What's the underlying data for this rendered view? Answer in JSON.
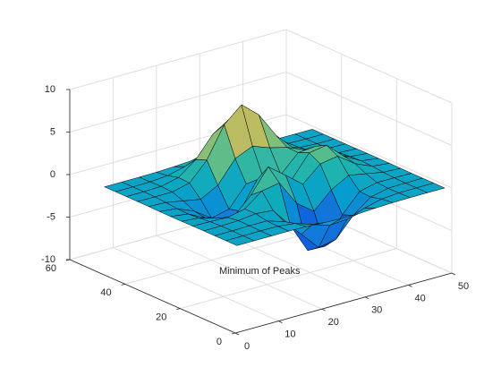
{
  "chart_data": {
    "type": "surface",
    "x": [
      1,
      5,
      9,
      13,
      17,
      21,
      25,
      29,
      33,
      37,
      41,
      45,
      49
    ],
    "y": [
      1,
      5,
      9,
      13,
      17,
      21,
      25,
      29,
      33,
      37,
      41,
      45,
      49
    ],
    "z": [
      [
        0,
        0,
        0,
        0.01,
        -0.03,
        -0.14,
        -0.24,
        -0.22,
        -0.11,
        -0.03,
        -0.01,
        0,
        0
      ],
      [
        0,
        0,
        0.02,
        0,
        -0.23,
        -0.91,
        -1.57,
        -1.41,
        -0.69,
        -0.18,
        -0.03,
        0,
        0
      ],
      [
        0,
        0.01,
        0.05,
        0.05,
        -0.59,
        -2.64,
        -4.76,
        -4.35,
        -2.1,
        -0.53,
        -0.06,
        -0.01,
        0
      ],
      [
        0,
        0.01,
        0.08,
        0.33,
        0.15,
        -2.19,
        -5.68,
        -5.76,
        -2.63,
        -0.44,
        0.04,
        0.03,
        0
      ],
      [
        -0.01,
        -0.06,
        -0.13,
        0.3,
        1.86,
        2.23,
        -0.72,
        -2.22,
        -0.27,
        0.88,
        0.5,
        0.11,
        0.01
      ],
      [
        -0.03,
        -0.2,
        -0.8,
        -1.21,
        0.8,
        3.55,
        2,
        0.39,
        2.2,
        2.56,
        1.12,
        0.24,
        0.03
      ],
      [
        -0.04,
        -0.3,
        -1.33,
        -2.77,
        -1.65,
        1.48,
        0.98,
        0.38,
        2.94,
        3.27,
        1.41,
        0.3,
        0.03
      ],
      [
        -0.03,
        -0.25,
        -1.12,
        -2.49,
        -2,
        0.39,
        0.46,
        0.37,
        2.38,
        2.56,
        1.1,
        0.23,
        0.03
      ],
      [
        -0.01,
        -0.11,
        -0.48,
        -0.86,
        0.23,
        2.8,
        3.69,
        2.94,
        2.43,
        1.58,
        0.58,
        0.11,
        0.01
      ],
      [
        0,
        -0.02,
        -0.01,
        0.48,
        2.61,
        6.2,
        7.99,
        6.25,
        3.26,
        1.19,
        0.29,
        0.05,
        0
      ],
      [
        0,
        0.01,
        0.08,
        0.55,
        2.1,
        4.56,
        5.86,
        4.57,
        2.21,
        0.68,
        0.13,
        0.02,
        0
      ],
      [
        0,
        0,
        0.03,
        0.19,
        0.69,
        1.47,
        1.89,
        1.47,
        0.7,
        0.21,
        0.04,
        0,
        0
      ],
      [
        0,
        0,
        0,
        0.03,
        0.11,
        0.23,
        0.3,
        0.23,
        0.11,
        0.03,
        0.01,
        0,
        0
      ]
    ],
    "xlim": [
      0,
      50
    ],
    "ylim": [
      0,
      60
    ],
    "zlim": [
      -10,
      10
    ],
    "xticks": [
      0,
      10,
      20,
      30,
      40,
      50
    ],
    "yticks": [
      0,
      20,
      40,
      60
    ],
    "zticks": [
      -10,
      -5,
      0,
      5,
      10
    ],
    "colormap": "parula",
    "edge_color": "#000000",
    "grid": true,
    "annotation": "Minimum of Peaks"
  }
}
